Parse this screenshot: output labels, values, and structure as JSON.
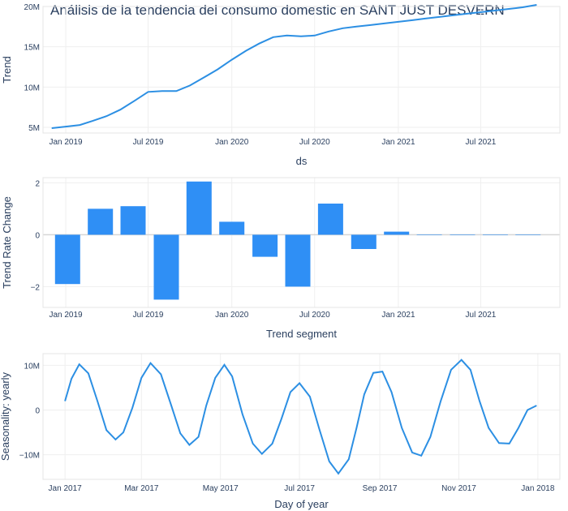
{
  "title": "Análisis de la tendencia del consumo domestic en SANT JUST DESVERN",
  "colors": {
    "line": "#2c8fe3",
    "bar": "#2f8ff5",
    "grid": "#efefef",
    "text": "#2a3f5f"
  },
  "chart_data": [
    {
      "type": "line",
      "xlabel": "ds",
      "ylabel": "Trend",
      "x_ticks": [
        {
          "date": "2019-01-01",
          "label": "Jan 2019"
        },
        {
          "date": "2019-07-01",
          "label": "Jul 2019"
        },
        {
          "date": "2020-01-01",
          "label": "Jan 2020"
        },
        {
          "date": "2020-07-01",
          "label": "Jul 2020"
        },
        {
          "date": "2021-01-01",
          "label": "Jan 2021"
        },
        {
          "date": "2021-07-01",
          "label": "Jul 2021"
        }
      ],
      "y_ticks": [
        {
          "value": 5000000,
          "label": "5M"
        },
        {
          "value": 10000000,
          "label": "10M"
        },
        {
          "value": 15000000,
          "label": "15M"
        },
        {
          "value": 20000000,
          "label": "20M"
        }
      ],
      "xlim": [
        "2018-11-12",
        "2021-12-22"
      ],
      "ylim": [
        4300000,
        20000000
      ],
      "grid": true,
      "x": [
        "2018-12-01",
        "2019-01-01",
        "2019-02-01",
        "2019-03-01",
        "2019-04-01",
        "2019-05-01",
        "2019-06-01",
        "2019-07-01",
        "2019-08-01",
        "2019-09-01",
        "2019-10-01",
        "2019-11-01",
        "2019-12-01",
        "2020-01-01",
        "2020-02-01",
        "2020-03-01",
        "2020-04-01",
        "2020-05-01",
        "2020-06-01",
        "2020-07-01",
        "2020-08-01",
        "2020-09-01",
        "2020-10-01",
        "2020-11-01",
        "2020-12-01",
        "2021-01-01",
        "2021-02-01",
        "2021-03-01",
        "2021-04-01",
        "2021-05-01",
        "2021-06-01",
        "2021-07-01",
        "2021-08-01",
        "2021-09-01",
        "2021-10-01",
        "2021-11-01"
      ],
      "y": [
        4900000,
        5100000,
        5300000,
        5800000,
        6400000,
        7200000,
        8300000,
        9400000,
        9500000,
        9500000,
        10200000,
        11200000,
        12200000,
        13400000,
        14500000,
        15400000,
        16200000,
        16400000,
        16300000,
        16400000,
        16900000,
        17300000,
        17500000,
        17700000,
        17900000,
        18100000,
        18300000,
        18500000,
        18700000,
        18900000,
        19100000,
        19300000,
        19500000,
        19700000,
        19900000,
        20200000
      ]
    },
    {
      "type": "bar",
      "xlabel": "Trend segment",
      "ylabel": "Trend Rate Change",
      "x_ticks": [
        {
          "date": "2019-01-01",
          "label": "Jan 2019"
        },
        {
          "date": "2019-07-01",
          "label": "Jul 2019"
        },
        {
          "date": "2020-01-01",
          "label": "Jan 2020"
        },
        {
          "date": "2020-07-01",
          "label": "Jul 2020"
        },
        {
          "date": "2021-01-01",
          "label": "Jan 2021"
        },
        {
          "date": "2021-07-01",
          "label": "Jul 2021"
        }
      ],
      "y_ticks": [
        {
          "value": -2,
          "label": "−2"
        },
        {
          "value": 0,
          "label": "0"
        },
        {
          "value": 2,
          "label": "2"
        }
      ],
      "xlim": [
        "2018-11-12",
        "2021-12-22"
      ],
      "ylim": [
        -2.8,
        2.2
      ],
      "grid": true,
      "x": [
        "2019-01-05",
        "2019-03-18",
        "2019-05-29",
        "2019-08-10",
        "2019-10-21",
        "2020-01-01",
        "2020-03-14",
        "2020-05-25",
        "2020-08-05",
        "2020-10-17",
        "2020-12-28",
        "2021-03-10",
        "2021-05-22",
        "2021-08-02",
        "2021-10-13"
      ],
      "values": [
        -1.9,
        1.0,
        1.1,
        -2.5,
        2.05,
        0.5,
        -0.85,
        -2.0,
        1.2,
        -0.55,
        0.12,
        0,
        0,
        0,
        0
      ]
    },
    {
      "type": "line",
      "xlabel": "Day of year",
      "ylabel": "Seasonality: yearly",
      "x_ticks": [
        {
          "date": "2017-01-01",
          "label": "Jan 2017"
        },
        {
          "date": "2017-03-01",
          "label": "Mar 2017"
        },
        {
          "date": "2017-05-01",
          "label": "May 2017"
        },
        {
          "date": "2017-07-01",
          "label": "Jul 2017"
        },
        {
          "date": "2017-09-01",
          "label": "Sep 2017"
        },
        {
          "date": "2017-11-01",
          "label": "Nov 2017"
        },
        {
          "date": "2018-01-01",
          "label": "Jan 2018"
        }
      ],
      "y_ticks": [
        {
          "value": -10000000,
          "label": "−10M"
        },
        {
          "value": 0,
          "label": "0"
        },
        {
          "value": 10000000,
          "label": "10M"
        }
      ],
      "xlim": [
        "2016-12-15",
        "2018-01-18"
      ],
      "ylim": [
        -15500000,
        12600000
      ],
      "grid": true,
      "x": [
        "2017-01-01",
        "2017-01-06",
        "2017-01-12",
        "2017-01-19",
        "2017-01-26",
        "2017-02-02",
        "2017-02-09",
        "2017-02-15",
        "2017-02-22",
        "2017-03-01",
        "2017-03-08",
        "2017-03-16",
        "2017-03-24",
        "2017-03-31",
        "2017-04-07",
        "2017-04-14",
        "2017-04-20",
        "2017-04-27",
        "2017-05-04",
        "2017-05-10",
        "2017-05-18",
        "2017-05-26",
        "2017-06-02",
        "2017-06-10",
        "2017-06-17",
        "2017-06-24",
        "2017-07-01",
        "2017-07-09",
        "2017-07-16",
        "2017-07-24",
        "2017-07-31",
        "2017-08-08",
        "2017-08-14",
        "2017-08-20",
        "2017-08-27",
        "2017-09-03",
        "2017-09-10",
        "2017-09-18",
        "2017-09-26",
        "2017-10-03",
        "2017-10-10",
        "2017-10-18",
        "2017-10-26",
        "2017-11-03",
        "2017-11-10",
        "2017-11-17",
        "2017-11-24",
        "2017-12-02",
        "2017-12-10",
        "2017-12-17",
        "2017-12-24",
        "2017-12-31"
      ],
      "y": [
        2000000,
        7000000,
        10200000,
        8200000,
        2000000,
        -4500000,
        -6600000,
        -5000000,
        500000,
        7200000,
        10500000,
        8000000,
        1000000,
        -5200000,
        -7800000,
        -6000000,
        1000000,
        7200000,
        10100000,
        7500000,
        -1000000,
        -7500000,
        -9800000,
        -7500000,
        -2000000,
        4000000,
        6000000,
        3000000,
        -4000000,
        -11500000,
        -14200000,
        -11000000,
        -4000000,
        3500000,
        8300000,
        8600000,
        4000000,
        -4000000,
        -9500000,
        -10200000,
        -6000000,
        2000000,
        9000000,
        11200000,
        9000000,
        2000000,
        -4000000,
        -7400000,
        -7500000,
        -4000000,
        0,
        1000000
      ]
    }
  ]
}
